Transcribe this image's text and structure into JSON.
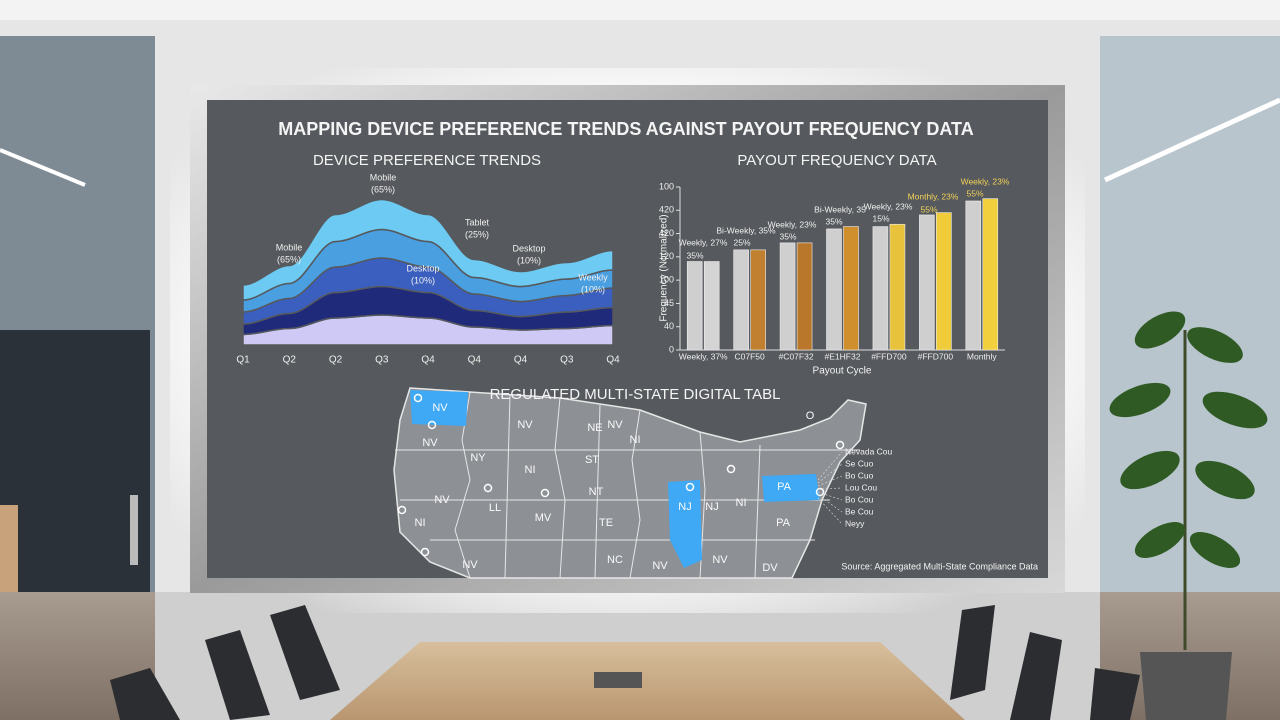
{
  "header": {
    "title": "MAPPING DEVICE PREFERENCE TRENDS AGAINST PAYOUT FREQUENCY DATA"
  },
  "chart_data": [
    {
      "type": "area",
      "title": "DEVICE PREFERENCE TRENDS",
      "categories": [
        "Q1",
        "Q2",
        "Q2",
        "Q3",
        "Q4",
        "Q4",
        "Q4",
        "Q3",
        "Q4"
      ],
      "series": [
        {
          "color": "#cfcaf5",
          "values": [
            0.7,
            1.1,
            1.8,
            2.0,
            1.8,
            1.2,
            1.0,
            1.1,
            1.3
          ]
        },
        {
          "color": "#1f2a7a",
          "values": [
            0.7,
            1.0,
            1.7,
            1.9,
            1.7,
            1.1,
            0.9,
            1.1,
            1.2
          ]
        },
        {
          "color": "#3a5fbf",
          "values": [
            0.8,
            1.0,
            1.7,
            1.9,
            1.7,
            1.1,
            1.0,
            1.1,
            1.3
          ]
        },
        {
          "color": "#4a9fe0",
          "values": [
            0.8,
            1.0,
            1.7,
            1.9,
            1.7,
            1.1,
            1.0,
            1.1,
            1.2
          ]
        },
        {
          "color": "#6dcaf2",
          "values": [
            1.0,
            1.2,
            1.8,
            2.0,
            1.8,
            1.2,
            1.0,
            1.1,
            1.3
          ]
        }
      ],
      "ylim": [
        0,
        10
      ],
      "annotations": [
        "Mobile",
        "(65%)",
        "Mobile",
        "(65%)",
        "Tablet",
        "(25%)",
        "Desktop",
        "(10%)",
        "Desktop",
        "(10%)",
        "Weekly",
        "(10%)"
      ]
    },
    {
      "type": "bar",
      "title": "PAYOUT FREQUENCY DATA",
      "x_label": "Payout Cycle",
      "y_label": "Frequency (Normalized)",
      "categories": [
        "Weekly, 37%",
        "C07F50",
        "#C07F32",
        "#E1HF32",
        "#FFD700",
        "#FFD700",
        "Monthly"
      ],
      "series": [
        {
          "color": "#cfcfcf",
          "values": [
            3.8,
            4.3,
            4.6,
            5.2,
            5.3,
            5.8,
            6.4
          ]
        },
        {
          "colors": [
            "#d4d4d4",
            "#c0802f",
            "#b9772c",
            "#cf8f2c",
            "#e8c23a",
            "#f0cc3a",
            "#f2cf3c"
          ],
          "values": [
            3.8,
            4.3,
            4.6,
            5.3,
            5.4,
            5.9,
            6.5
          ]
        }
      ],
      "ylim": [
        0,
        7
      ],
      "yticks": [
        0,
        {
          "value": 1,
          "label": "40"
        },
        {
          "value": 2,
          "label": "45"
        },
        {
          "value": 3,
          "label": "100"
        },
        {
          "value": 4,
          "label": "120"
        },
        {
          "value": 5,
          "label": "420"
        },
        {
          "value": 6,
          "label": "420"
        },
        {
          "value": 7,
          "label": "100"
        }
      ],
      "annotations": [
        "Weekly, 27%",
        "35%",
        "Bi-Weekly, 35%",
        "25%",
        "Weekly, 23%",
        "35%",
        "Bi-Weekly, 35",
        "35%",
        "Weekly, 23%",
        "15%",
        "Monthly, 23%",
        "55%",
        "Weekly, 23%",
        "55%"
      ]
    }
  ],
  "map": {
    "title": "REGULATED MULTI-STATE DIGITAL TABL",
    "labels": [
      "NV",
      "NV",
      "NV",
      "NY",
      "NV",
      "NE",
      "NI",
      "ST",
      "NI",
      "NV",
      "NT",
      "LL",
      "MV",
      "TE",
      "NJ",
      "NJ",
      "NI",
      "NV",
      "PA",
      "PA",
      "NI",
      "NC",
      "NV",
      "NV",
      "DV",
      "O"
    ],
    "callouts": [
      "Nevada Cou",
      "Se Cuo",
      "Bo Cuo",
      "Lou Cou",
      "Bo Cou",
      "Be Cou",
      "Neyy"
    ],
    "source": "Source: Aggregated Multi-State Compliance Data"
  }
}
